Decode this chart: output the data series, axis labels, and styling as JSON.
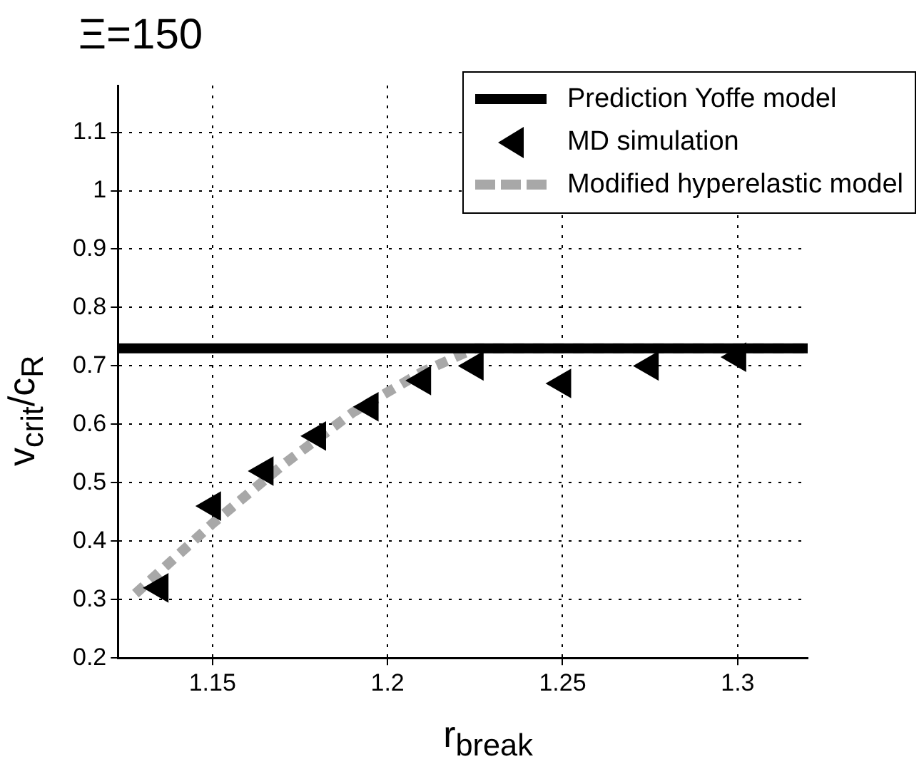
{
  "chart_data": {
    "type": "line",
    "title": "Ξ=150",
    "xlabel": "r$_{break}$",
    "ylabel": "v$_{crit}$/c$_{R}$",
    "xlim": [
      1.123,
      1.32
    ],
    "xticks": [
      1.15,
      1.2,
      1.25,
      1.3
    ],
    "ylim": [
      0.2,
      1.18
    ],
    "yticks": [
      0.2,
      0.3,
      0.4,
      0.5,
      0.6,
      0.7,
      0.8,
      0.9,
      1,
      1.1
    ],
    "grid": true,
    "legend": "top right",
    "series": [
      {
        "name": "Prediction Yoffe model",
        "type": "line",
        "color": "#000000",
        "line_style": "solid",
        "marker": "none",
        "x": [
          1.123,
          1.32
        ],
        "values": [
          0.73,
          0.73
        ]
      },
      {
        "name": "MD simulation",
        "type": "scatter",
        "color": "#000000",
        "marker": "triangle",
        "x": [
          1.135,
          1.15,
          1.165,
          1.18,
          1.195,
          1.21,
          1.225,
          1.25,
          1.275,
          1.3
        ],
        "values": [
          0.32,
          0.46,
          0.52,
          0.58,
          0.63,
          0.675,
          0.7,
          0.67,
          0.7,
          0.715
        ]
      },
      {
        "name": "Modified hyperelastic model",
        "type": "line",
        "color": "#a8a8a8",
        "line_style": "dashed",
        "marker": "none",
        "x": [
          1.128,
          1.15,
          1.17,
          1.19,
          1.21,
          1.225,
          1.32
        ],
        "values": [
          0.31,
          0.43,
          0.53,
          0.62,
          0.69,
          0.73,
          0.73
        ]
      }
    ]
  }
}
